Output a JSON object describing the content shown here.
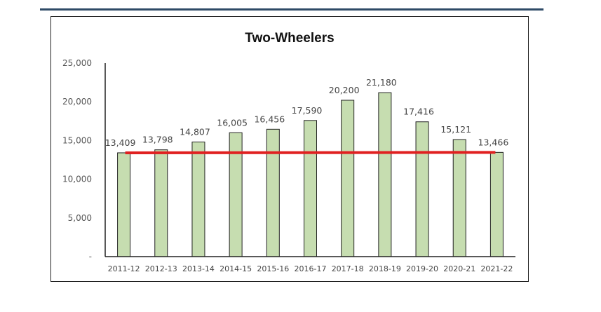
{
  "chart_data": {
    "type": "bar",
    "title": "Two-Wheelers",
    "categories": [
      "2011-12",
      "2012-13",
      "2013-14",
      "2014-15",
      "2015-16",
      "2016-17",
      "2017-18",
      "2018-19",
      "2019-20",
      "2020-21",
      "2021-22"
    ],
    "values": [
      13409,
      13798,
      14807,
      16005,
      16456,
      17590,
      20200,
      21180,
      17416,
      15121,
      13466
    ],
    "data_labels": [
      "13,409",
      "13,798",
      "14,807",
      "16,005",
      "16,456",
      "17,590",
      "20,200",
      "21,180",
      "17,416",
      "15,121",
      "13,466"
    ],
    "yticks": [
      0,
      5000,
      10000,
      15000,
      20000,
      25000
    ],
    "ytick_labels": [
      "-",
      "5,000",
      "10,000",
      "15,000",
      "20,000",
      "25,000"
    ],
    "ylim": [
      0,
      25000
    ],
    "trend_line": {
      "start": 13409,
      "end": 13466
    },
    "grid": false,
    "legend": "none",
    "colors": {
      "bar_fill": "#c6ddb0",
      "bar_stroke": "#222222",
      "trend": "#e02020",
      "top_rule": "#2e4a66"
    }
  }
}
